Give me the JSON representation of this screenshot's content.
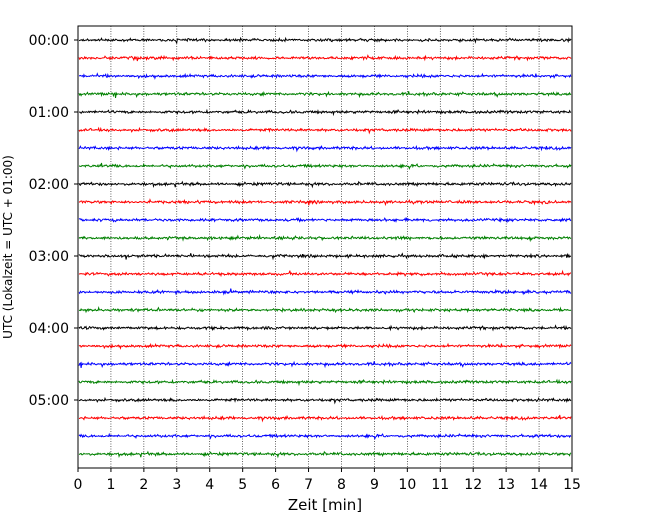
{
  "chart_data": {
    "type": "line",
    "title": "",
    "xlabel": "Zeit  [min]",
    "ylabel": "UTC (Lokalzeit = UTC + 01:00)",
    "xlim": [
      0,
      15
    ],
    "xticks": [
      0,
      1,
      2,
      3,
      4,
      5,
      6,
      7,
      8,
      9,
      10,
      11,
      12,
      13,
      14,
      15
    ],
    "ytick_labels": [
      "00:00",
      "01:00",
      "02:00",
      "03:00",
      "04:00",
      "05:00"
    ],
    "grid": "vertical dotted",
    "trace_interval_min": 15,
    "trace_count": 24,
    "color_cycle": [
      "#000000",
      "#ff0000",
      "#0000ff",
      "#008000"
    ],
    "series_note": "helicorder traces, each row = 15 min of seismic signal"
  }
}
